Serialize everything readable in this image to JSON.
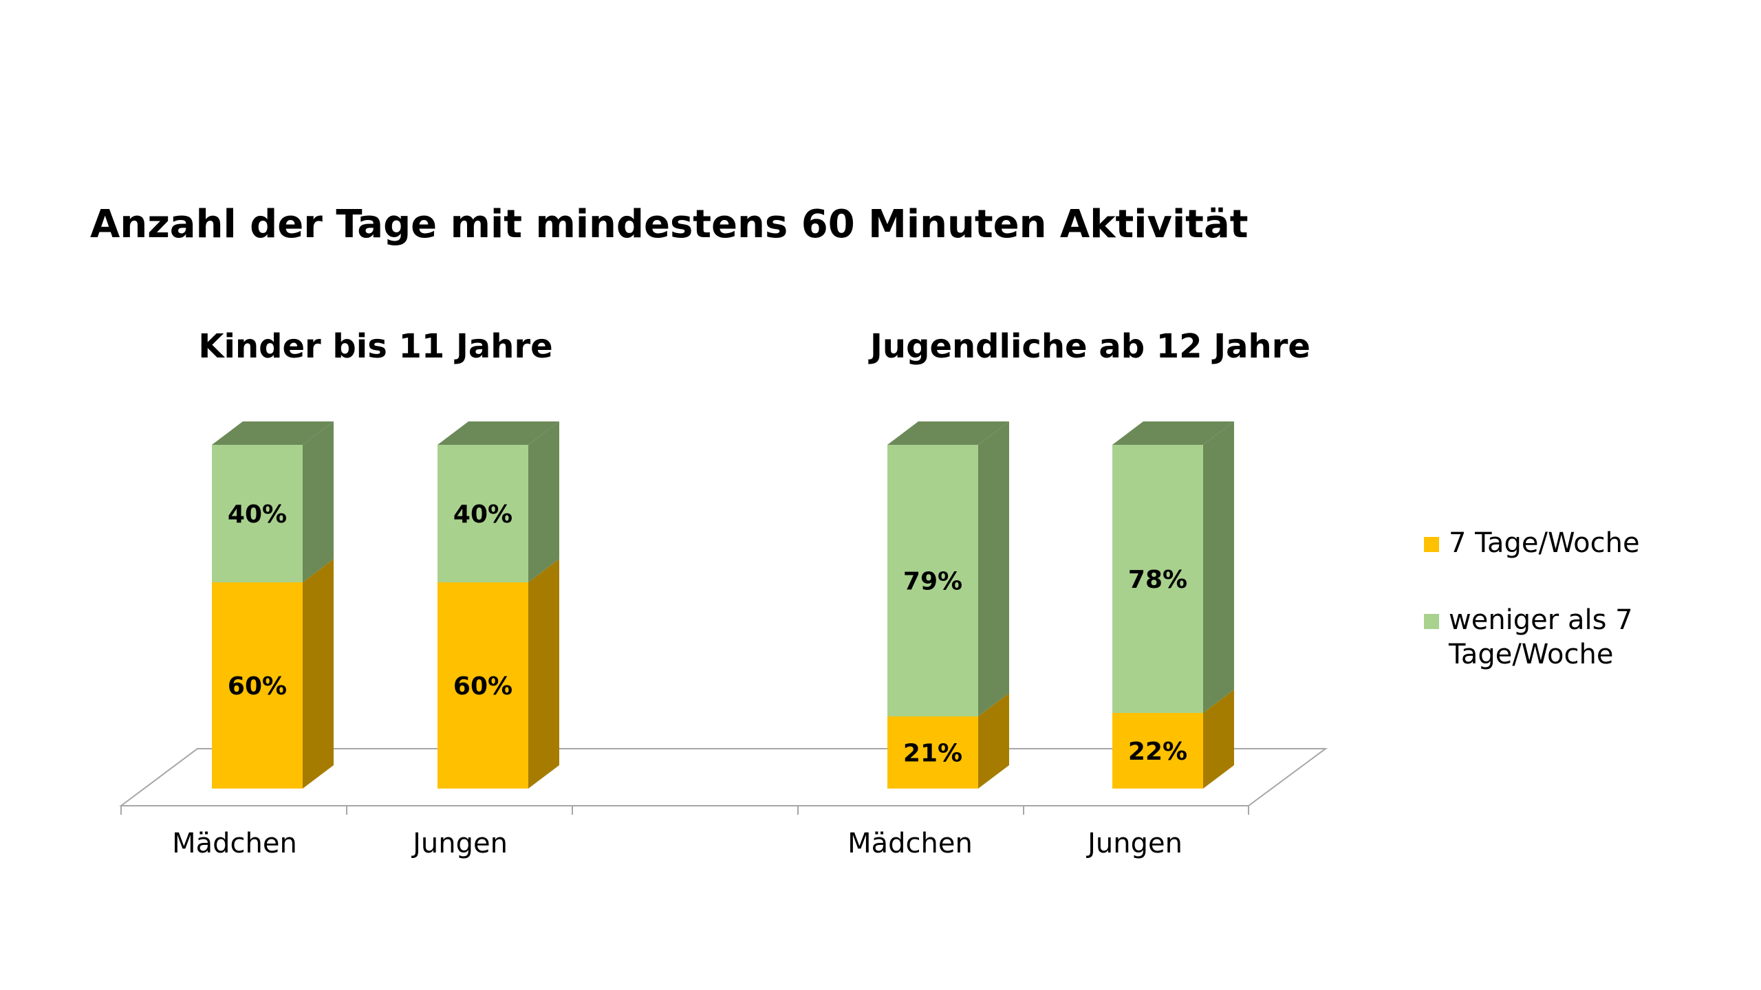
{
  "chart_data": {
    "type": "bar",
    "stacked": true,
    "style": "3d-column",
    "title": "Anzahl der Tage mit mindestens 60 Minuten Aktivität",
    "groups": [
      {
        "title": "Kinder bis 11 Jahre",
        "categories": [
          "Mädchen",
          "Jungen"
        ]
      },
      {
        "title": "Jugendliche ab 12 Jahre",
        "categories": [
          "Mädchen",
          "Jungen"
        ]
      }
    ],
    "categories": [
      "Mädchen",
      "Jungen",
      "Mädchen",
      "Jungen"
    ],
    "series": [
      {
        "name": "7 Tage/Woche",
        "values": [
          60,
          60,
          21,
          22
        ],
        "labels": [
          "60%",
          "60%",
          "21%",
          "22%"
        ],
        "color": "#FFC000",
        "side_color": "#A67C00"
      },
      {
        "name": "weniger als 7 Tage/Woche",
        "values": [
          40,
          40,
          79,
          78
        ],
        "labels": [
          "40%",
          "40%",
          "79%",
          "78%"
        ],
        "color": "#A9D18E",
        "side_color": "#6C8A58"
      }
    ],
    "legend": {
      "position": "right",
      "entries": [
        [
          "7 Tage/Woche"
        ],
        [
          "weniger als 7",
          "Tage/Woche"
        ]
      ]
    },
    "ylim": [
      0,
      100
    ],
    "grid": false
  }
}
